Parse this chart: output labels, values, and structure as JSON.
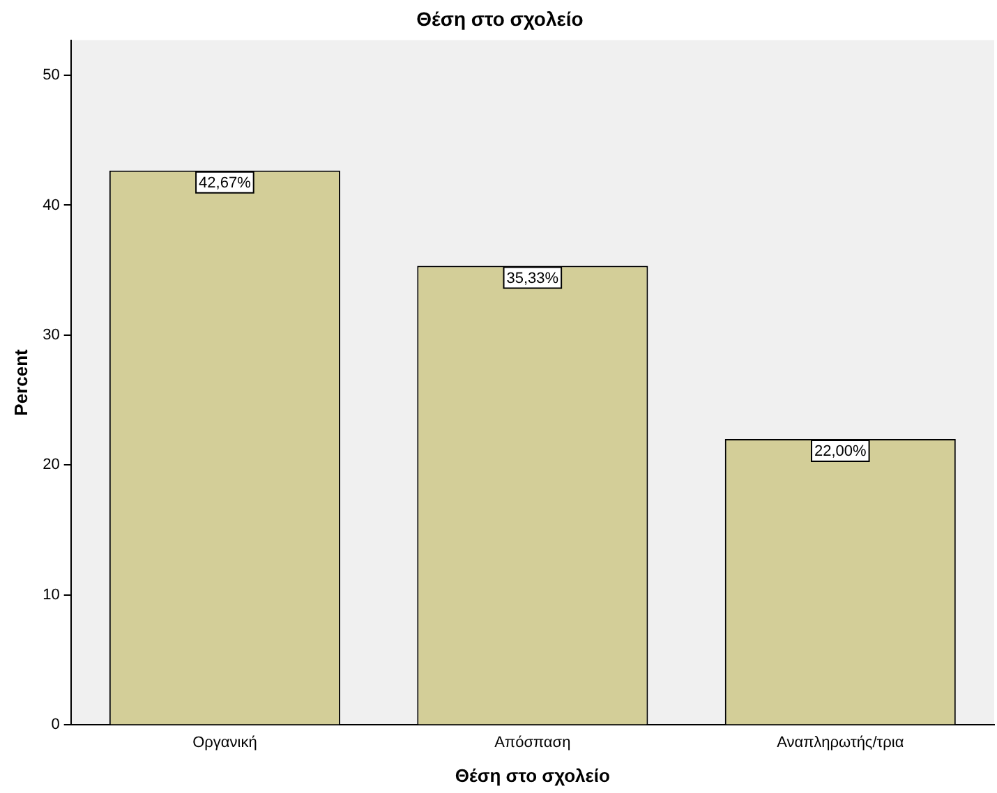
{
  "chart_data": {
    "type": "bar",
    "title": "Θέση στο σχολείο",
    "xlabel": "Θέση στο σχολείο",
    "ylabel": "Percent",
    "categories": [
      "Οργανική",
      "Απόσπαση",
      "Αναπληρωτής/τρια"
    ],
    "values": [
      42.67,
      35.33,
      22.0
    ],
    "value_labels": [
      "42,67%",
      "35,33%",
      "22,00%"
    ],
    "color": "#d3ce98",
    "ylim": [
      0,
      52.7
    ],
    "yticks": [
      0,
      10,
      20,
      30,
      40,
      50
    ],
    "grid": false,
    "legend": false
  }
}
